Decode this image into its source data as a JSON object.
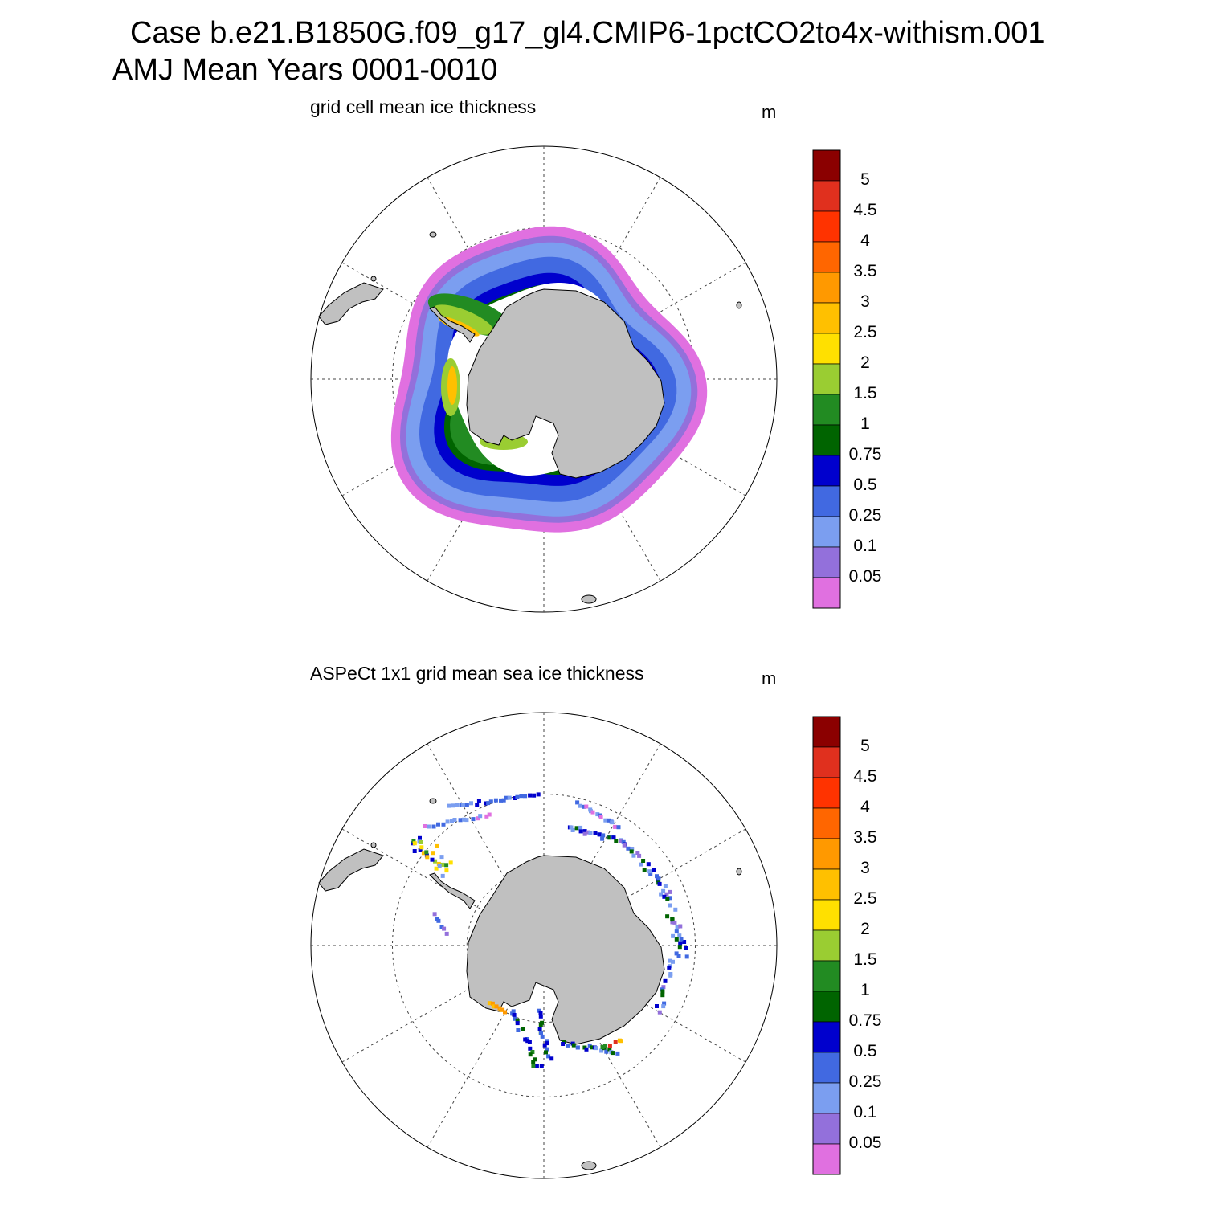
{
  "title": {
    "line1": "Case b.e21.B1850G.f09_g17_gl4.CMIP6-1pctCO2to4x-withism.001",
    "line2": "AMJ Mean   Years 0001-0010"
  },
  "panels": [
    {
      "title": "grid cell mean ice thickness",
      "units": "m"
    },
    {
      "title": "ASPeCt 1x1 grid mean sea ice thickness",
      "units": "m"
    }
  ],
  "colorbar": {
    "labels": [
      "5",
      "4.5",
      "4",
      "3.5",
      "3",
      "2.5",
      "2",
      "1.5",
      "1",
      "0.75",
      "0.5",
      "0.25",
      "0.1",
      "0.05"
    ],
    "colors": [
      "#8b0000",
      "#e0301e",
      "#ff3300",
      "#ff6600",
      "#ff9900",
      "#ffc000",
      "#ffe000",
      "#9acd32",
      "#228b22",
      "#006400",
      "#0000cd",
      "#4169e1",
      "#7b9ef0",
      "#9370db",
      "#e070e0"
    ]
  },
  "map": {
    "land_color": "#c0c0c0",
    "ocean_color": "#ffffff",
    "projection": "south polar stereographic"
  }
}
